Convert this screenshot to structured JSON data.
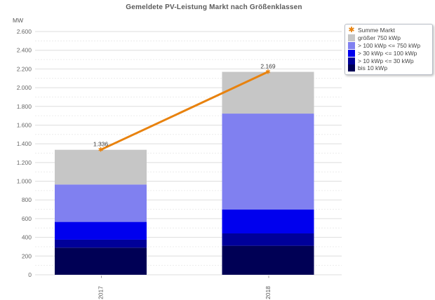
{
  "title": "Gemeldete PV-Leistung Markt nach Größenklassen",
  "y_axis": {
    "unit": "MW",
    "max": 2600,
    "minor_step": 100,
    "ticks": [
      {
        "value": 0,
        "label": "0"
      },
      {
        "value": 200,
        "label": "200"
      },
      {
        "value": 400,
        "label": "400"
      },
      {
        "value": 600,
        "label": "600"
      },
      {
        "value": 800,
        "label": "800"
      },
      {
        "value": 1000,
        "label": "1.000"
      },
      {
        "value": 1200,
        "label": "1.200"
      },
      {
        "value": 1400,
        "label": "1.400"
      },
      {
        "value": 1600,
        "label": "1.600"
      },
      {
        "value": 1800,
        "label": "1.800"
      },
      {
        "value": 2000,
        "label": "2.000"
      },
      {
        "value": 2200,
        "label": "2.200"
      },
      {
        "value": 2400,
        "label": "2.400"
      },
      {
        "value": 2600,
        "label": "2.600"
      }
    ]
  },
  "chart_data": {
    "type": "bar",
    "stacked": true,
    "title": "Gemeldete PV-Leistung Markt nach Größenklassen",
    "ylabel": "MW",
    "ylim": [
      0,
      2600
    ],
    "grid": true,
    "legend_position": "top-right",
    "categories": [
      "2017",
      "2018"
    ],
    "series": [
      {
        "name": "bis 10 kWp",
        "color": "#000055",
        "values": [
          290,
          310
        ]
      },
      {
        "name": "> 10 kWp <= 30 kWp",
        "color": "#000099",
        "values": [
          85,
          132
        ]
      },
      {
        "name": "> 30 kWp <= 100 kWp",
        "color": "#0000ee",
        "values": [
          190,
          255
        ]
      },
      {
        "name": "> 100 kWp <= 750 kWp",
        "color": "#8080f0",
        "values": [
          400,
          1026
        ]
      },
      {
        "name": "größer 750 kWp",
        "color": "#c6c6c6",
        "values": [
          371,
          446
        ]
      }
    ],
    "line": {
      "name": "Summe Markt",
      "color": "#e8820e",
      "values": [
        1336,
        2169
      ],
      "point_labels": [
        "1.336",
        "2.169"
      ]
    }
  },
  "legend": {
    "items": [
      {
        "label": "Summe Markt",
        "marker": "star",
        "color": "#e8820e"
      },
      {
        "label": "größer 750 kWp",
        "marker": "square",
        "color": "#c6c6c6"
      },
      {
        "label": "> 100 kWp <= 750 kWp",
        "marker": "square",
        "color": "#8080f0"
      },
      {
        "label": "> 30 kWp <= 100 kWp",
        "marker": "square",
        "color": "#0000ee"
      },
      {
        "label": "> 10 kWp <= 30 kWp",
        "marker": "square",
        "color": "#000099"
      },
      {
        "label": "bis 10 kWp",
        "marker": "square",
        "color": "#000055"
      }
    ]
  },
  "colors": {
    "grid_major": "#dedede",
    "grid_minor": "#ececec",
    "tick_text": "#666666",
    "data_label_text": "#3c3c3c",
    "category_text": "#555555"
  }
}
